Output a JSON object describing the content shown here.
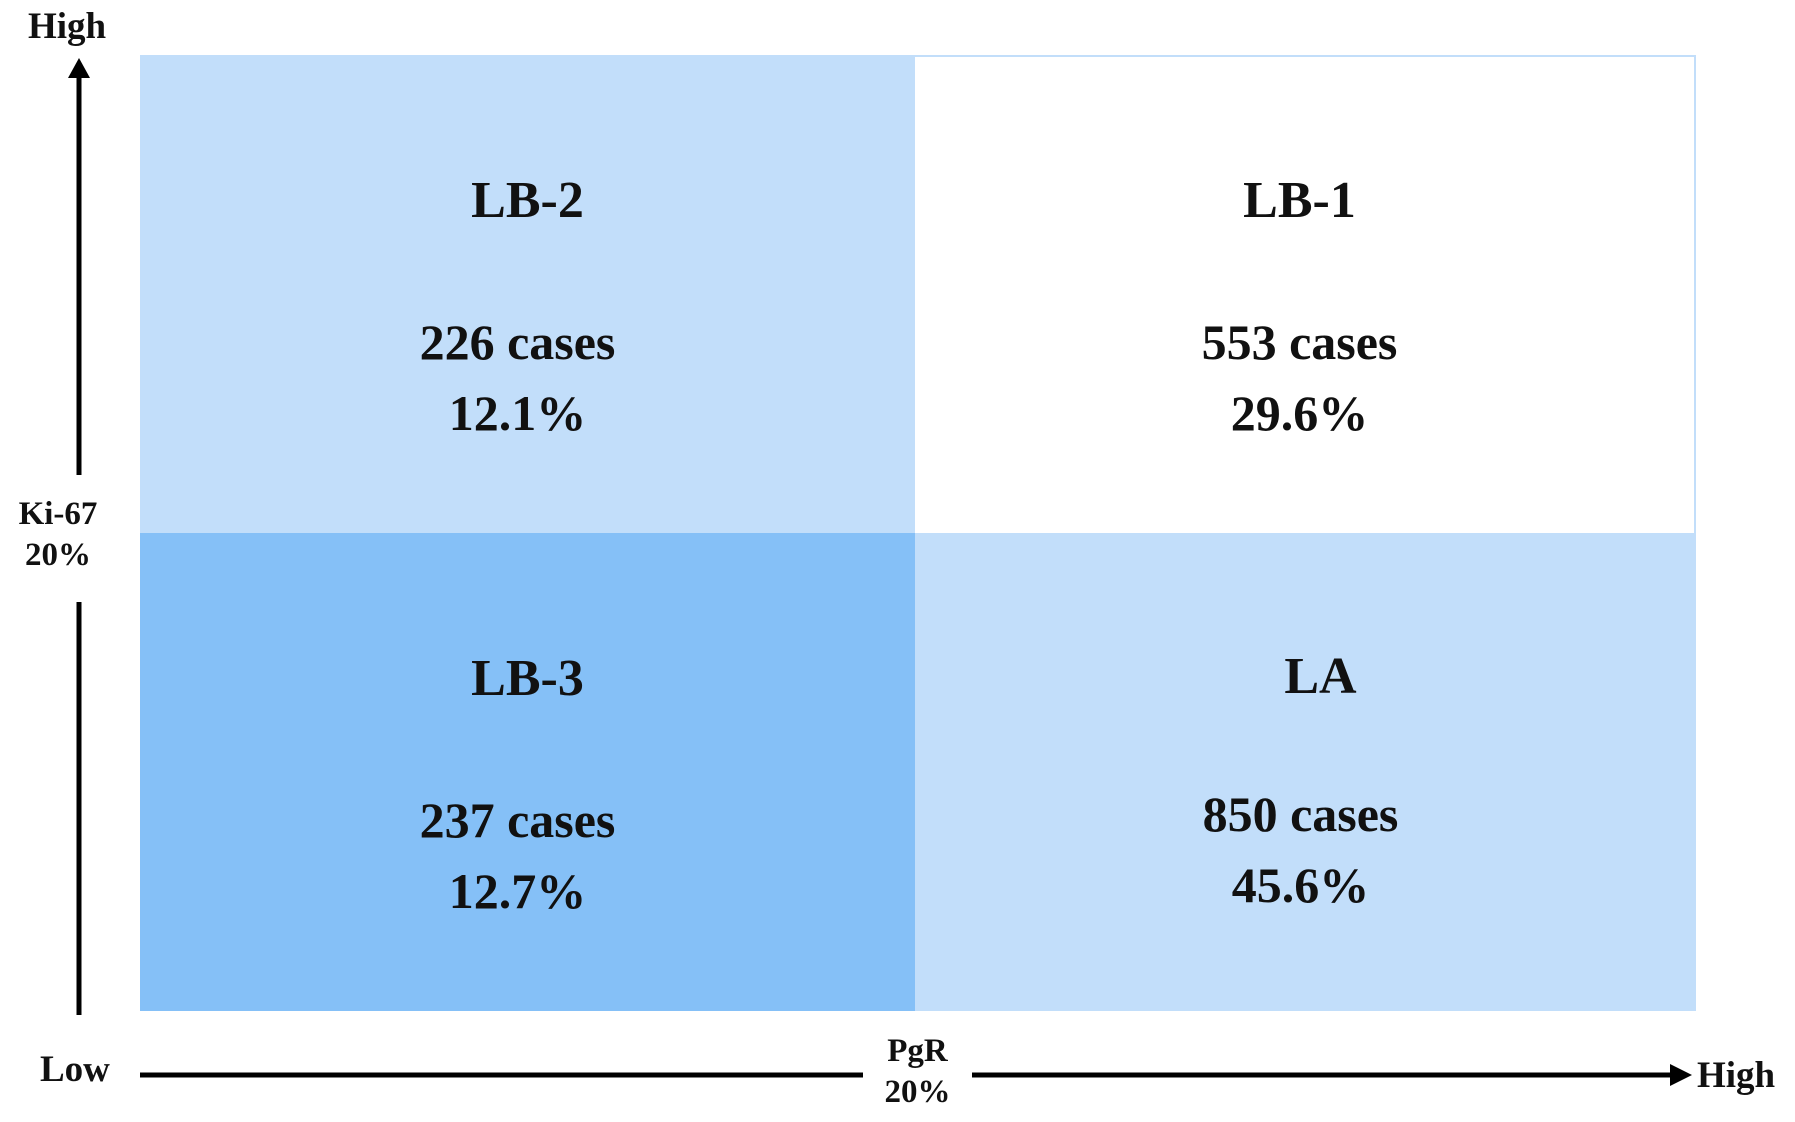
{
  "axes": {
    "y": {
      "label": "Ki-67",
      "cutoff": "20%",
      "high": "High"
    },
    "x": {
      "label": "PgR",
      "cutoff": "20%",
      "low": "Low",
      "high": "High"
    }
  },
  "quadrants": {
    "top_left": {
      "title": "LB-2",
      "cases": "226 cases",
      "percent": "12.1%",
      "color": "#c2defa"
    },
    "top_right": {
      "title": "LB-1",
      "cases": "553 cases",
      "percent": "29.6%",
      "color": "#ffffff"
    },
    "bottom_left": {
      "title": "LB-3",
      "cases": "237 cases",
      "percent": "12.7%",
      "color": "#85c0f7"
    },
    "bottom_right": {
      "title": "LA",
      "cases": "850 cases",
      "percent": "45.6%",
      "color": "#c2defa"
    }
  }
}
